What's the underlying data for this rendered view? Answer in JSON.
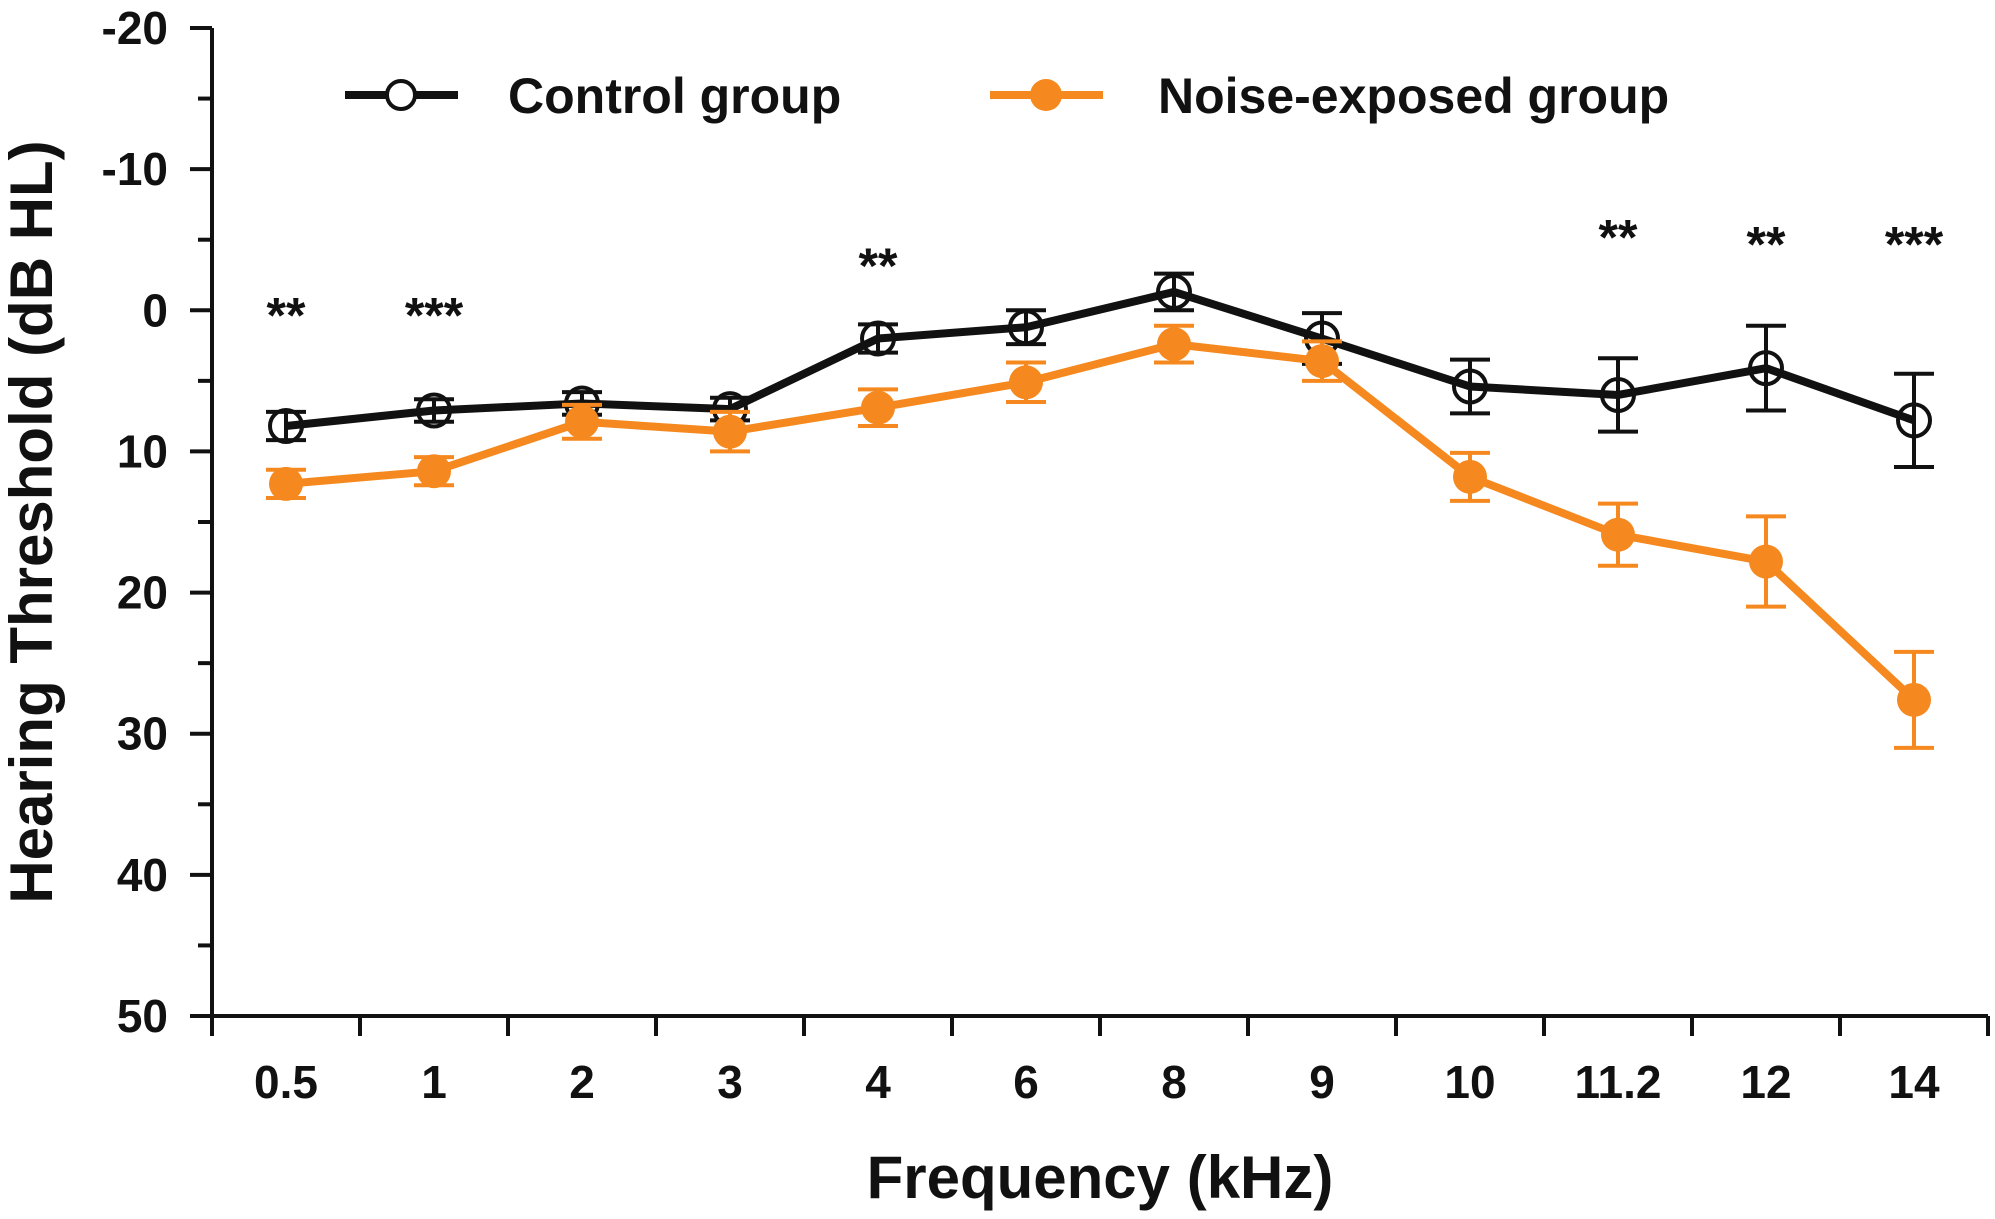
{
  "chart_data": {
    "type": "line",
    "title": "",
    "xlabel": "Frequency (kHz)",
    "ylabel": "Hearing Threshold (dB HL)",
    "ylim": [
      50,
      -20
    ],
    "y_inverted": true,
    "y_major_ticks": [
      -20,
      -10,
      0,
      10,
      20,
      30,
      40,
      50
    ],
    "y_tick_labels": [
      "-20",
      "-10",
      "0",
      "10",
      "20",
      "30",
      "40",
      "50"
    ],
    "categories": [
      "0.5",
      "1",
      "2",
      "3",
      "4",
      "6",
      "8",
      "9",
      "10",
      "11.2",
      "12",
      "14"
    ],
    "legend_position": "top",
    "series": [
      {
        "name": "Control group",
        "color": "#111111",
        "marker": "open-circle",
        "values": [
          8.2,
          7.1,
          6.6,
          7.0,
          2.0,
          1.2,
          -1.3,
          2.0,
          5.4,
          6.0,
          4.1,
          7.8
        ],
        "errors": [
          1.0,
          0.8,
          0.8,
          0.8,
          1.0,
          1.2,
          1.3,
          1.8,
          1.9,
          2.6,
          3.0,
          3.3
        ]
      },
      {
        "name": "Noise-exposed group",
        "color": "#F5891F",
        "marker": "filled-circle",
        "values": [
          12.3,
          11.4,
          7.9,
          8.6,
          6.9,
          5.1,
          2.4,
          3.6,
          11.8,
          15.9,
          17.8,
          27.6
        ],
        "errors": [
          1.0,
          1.0,
          1.2,
          1.4,
          1.3,
          1.4,
          1.3,
          1.4,
          1.7,
          2.2,
          3.2,
          3.4
        ]
      }
    ],
    "annotations": [
      {
        "category": "0.5",
        "text": "**",
        "y": 0
      },
      {
        "category": "1",
        "text": "***",
        "y": 0
      },
      {
        "category": "4",
        "text": "**",
        "y": -3.5
      },
      {
        "category": "11.2",
        "text": "**",
        "y": -5.5
      },
      {
        "category": "12",
        "text": "**",
        "y": -5
      },
      {
        "category": "14",
        "text": "***",
        "y": -5
      }
    ]
  }
}
